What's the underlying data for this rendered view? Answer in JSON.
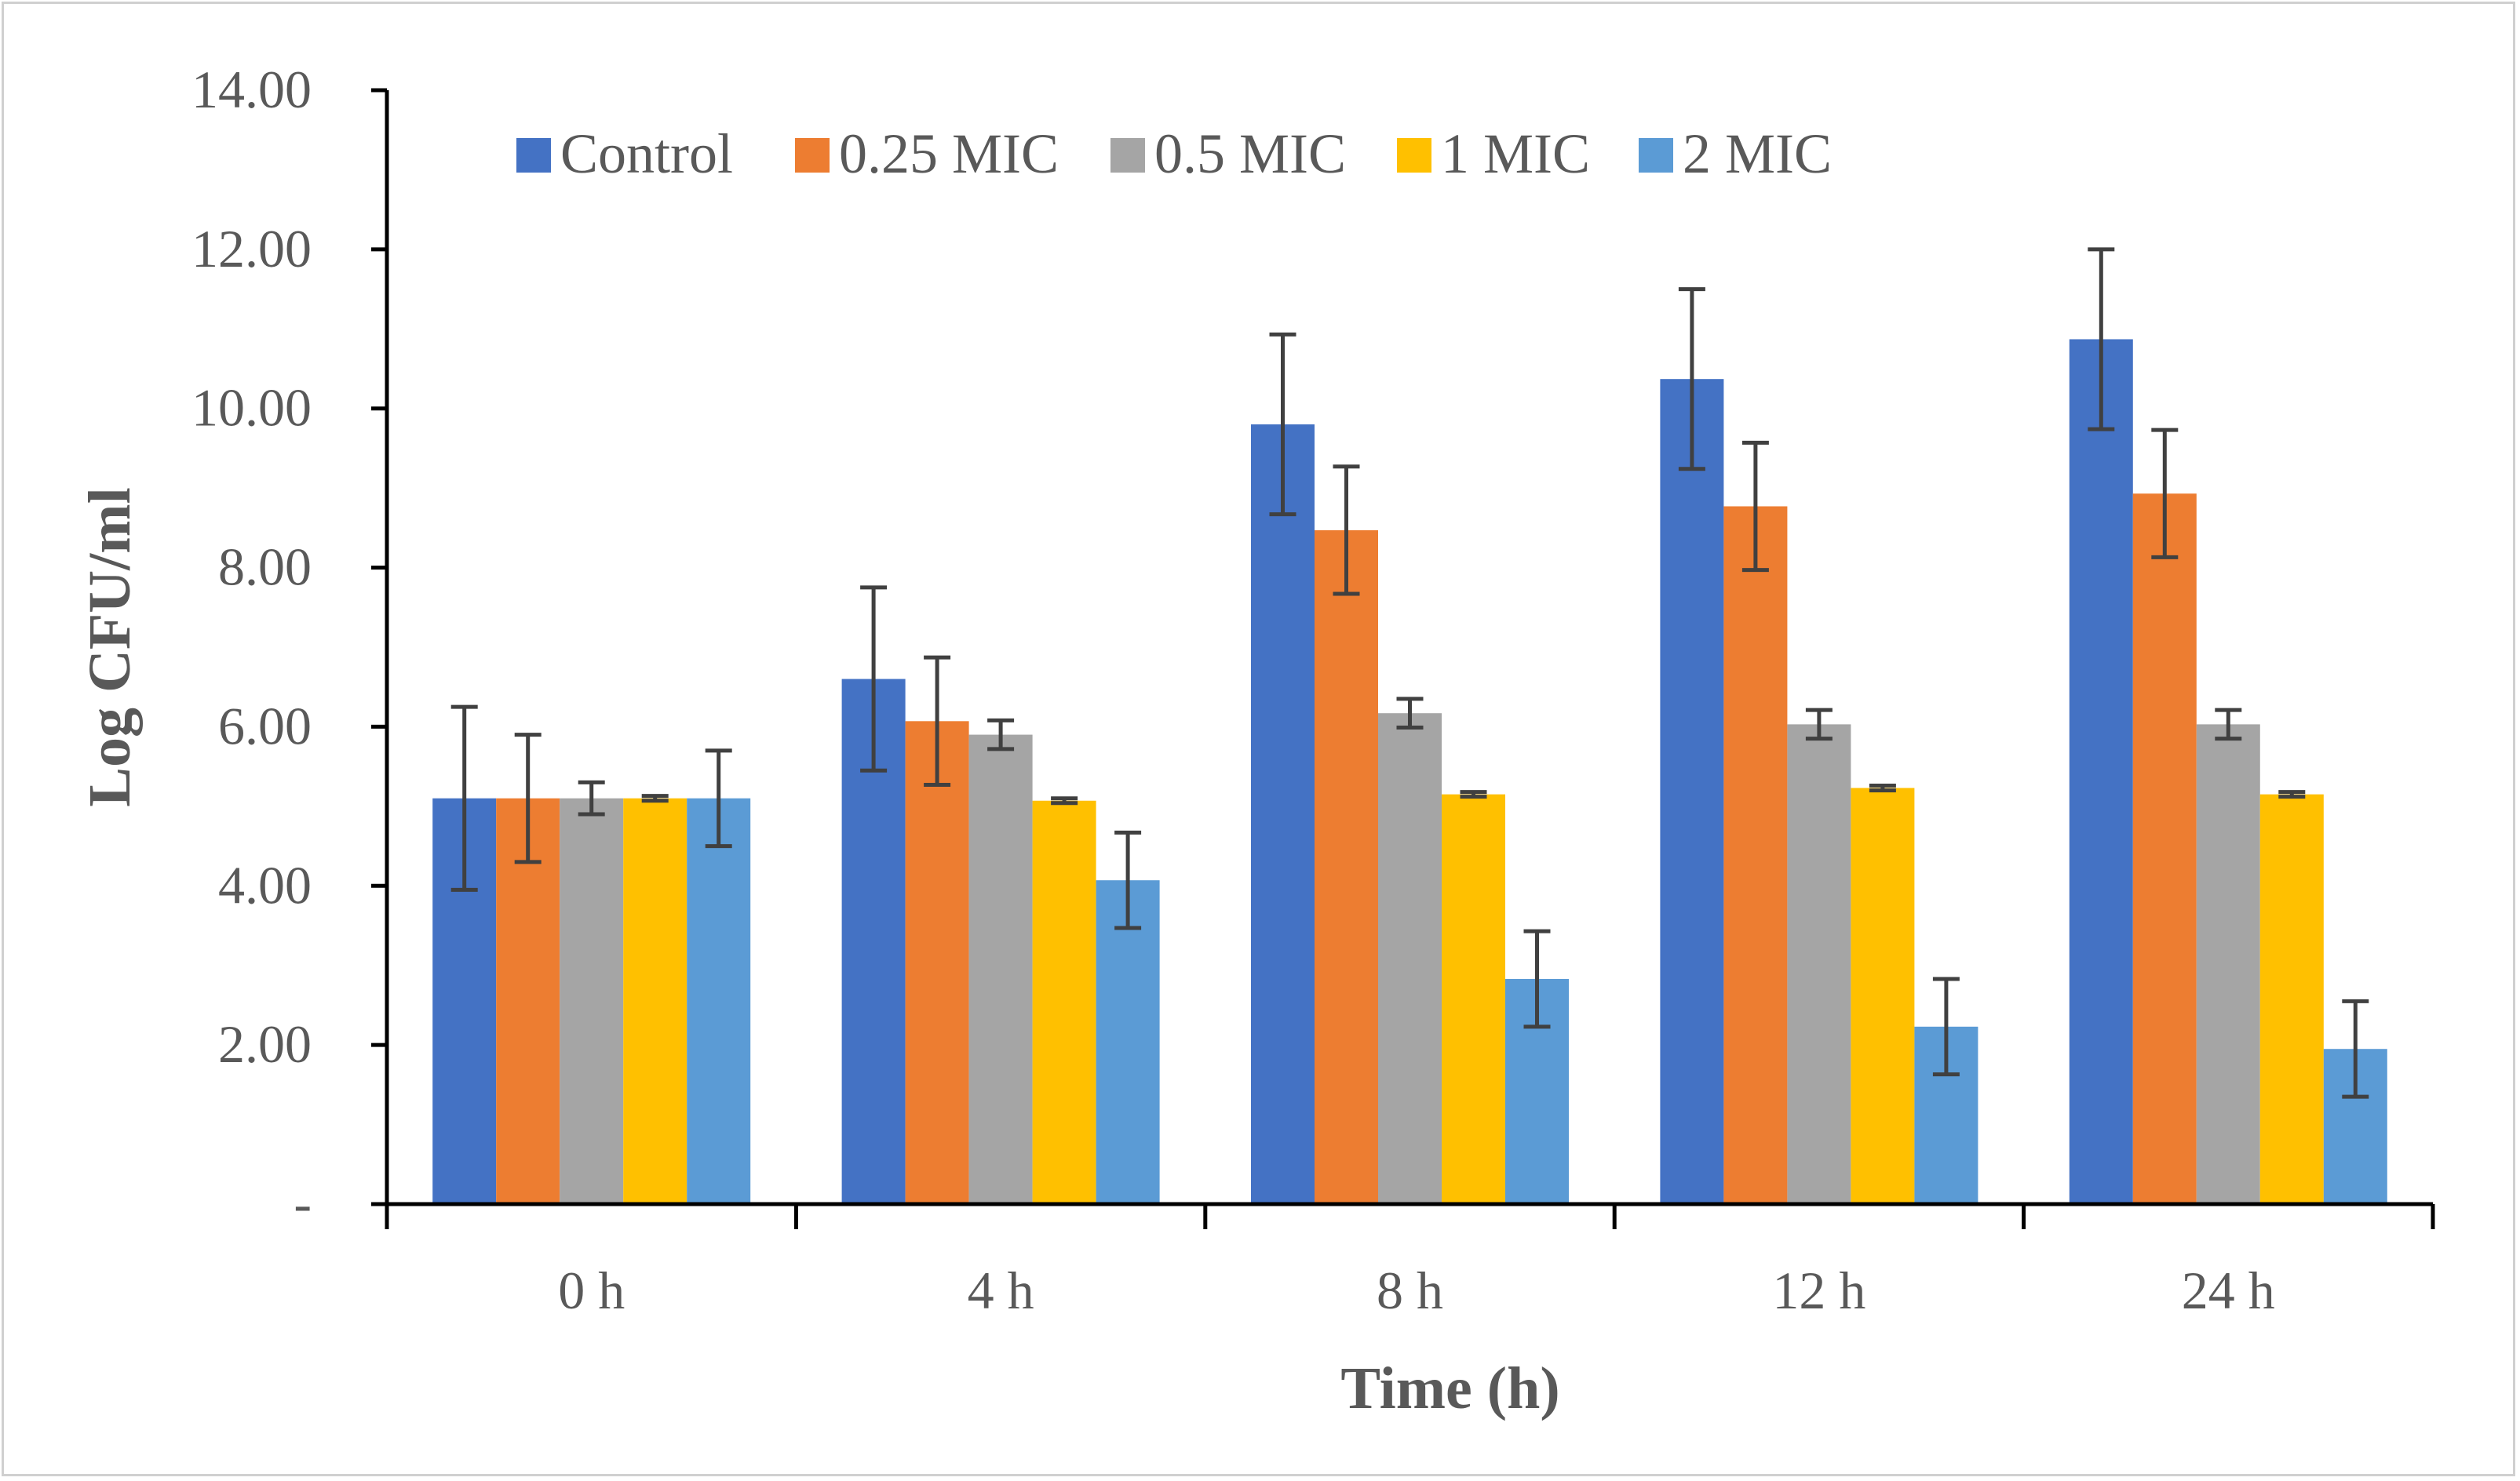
{
  "chart_data": {
    "type": "bar",
    "title": "",
    "xlabel": "Time (h)",
    "ylabel": "Log CFU/ml",
    "ylim": [
      0,
      14
    ],
    "yticks": [
      {
        "value": 0,
        "label": "-"
      },
      {
        "value": 2,
        "label": "2.00"
      },
      {
        "value": 4,
        "label": "4.00"
      },
      {
        "value": 6,
        "label": "6.00"
      },
      {
        "value": 8,
        "label": "8.00"
      },
      {
        "value": 10,
        "label": "10.00"
      },
      {
        "value": 12,
        "label": "12.00"
      },
      {
        "value": 14,
        "label": "14.00"
      }
    ],
    "categories": [
      "0 h",
      "4 h",
      "8 h",
      "12 h",
      "24 h"
    ],
    "legend_position": "top",
    "grid": false,
    "series": [
      {
        "name": "Control",
        "color": "#4472C4",
        "values": [
          5.1,
          6.6,
          9.8,
          10.37,
          10.87
        ],
        "errors": [
          1.15,
          1.15,
          1.13,
          1.13,
          1.13
        ]
      },
      {
        "name": "0.25 MIC",
        "color": "#ED7D31",
        "values": [
          5.1,
          6.07,
          8.47,
          8.77,
          8.93
        ],
        "errors": [
          0.8,
          0.8,
          0.8,
          0.8,
          0.8
        ]
      },
      {
        "name": "0.5 MIC",
        "color": "#A5A5A5",
        "values": [
          5.1,
          5.9,
          6.17,
          6.03,
          6.03
        ],
        "errors": [
          0.2,
          0.18,
          0.18,
          0.18,
          0.18
        ]
      },
      {
        "name": "1 MIC",
        "color": "#FFC000",
        "values": [
          5.1,
          5.07,
          5.15,
          5.23,
          5.15
        ],
        "errors": [
          0.03,
          0.03,
          0.03,
          0.03,
          0.03
        ]
      },
      {
        "name": "2 MIC",
        "color": "#5B9BD5",
        "values": [
          5.1,
          4.07,
          2.83,
          2.23,
          1.95
        ],
        "errors": [
          0.6,
          0.6,
          0.6,
          0.6,
          0.6
        ]
      }
    ]
  }
}
